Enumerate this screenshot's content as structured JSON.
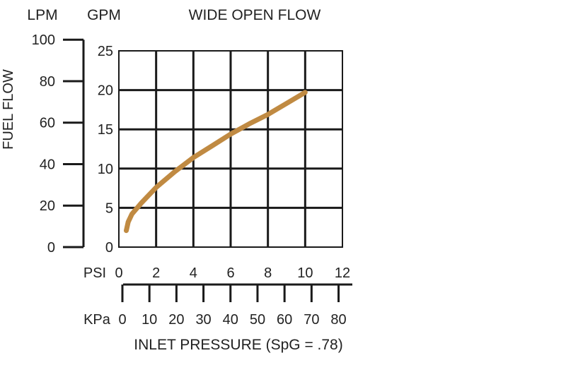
{
  "chart_data": {
    "type": "line",
    "title": "WIDE OPEN FLOW",
    "ylabel": "FUEL FLOW",
    "xlabel": "INLET PRESSURE (SpG = .78)",
    "gpm_axis": {
      "unit": "GPM",
      "ylim": [
        0,
        25
      ],
      "ticks": [
        "0",
        "5",
        "10",
        "15",
        "20",
        "25"
      ]
    },
    "lpm_axis": {
      "unit": "LPM",
      "ticks": [
        "0",
        "20",
        "40",
        "60",
        "80",
        "100"
      ]
    },
    "psi_axis": {
      "unit": "PSI",
      "xlim": [
        0,
        12
      ],
      "ticks": [
        "0",
        "2",
        "4",
        "6",
        "8",
        "10",
        "12"
      ]
    },
    "kpa_axis": {
      "unit": "KPa",
      "ticks": [
        "0",
        "10",
        "20",
        "30",
        "40",
        "50",
        "60",
        "70",
        "80"
      ]
    },
    "grid": true,
    "series": [
      {
        "color": "#c08a42",
        "x": [
          0.4,
          0.5,
          0.7,
          1.2,
          2,
          3,
          4,
          5,
          6,
          7,
          8,
          9,
          10
        ],
        "y": [
          2.1,
          3.2,
          4.2,
          5.6,
          7.6,
          9.6,
          11.4,
          12.9,
          14.4,
          15.7,
          16.9,
          18.3,
          19.7
        ]
      }
    ]
  }
}
